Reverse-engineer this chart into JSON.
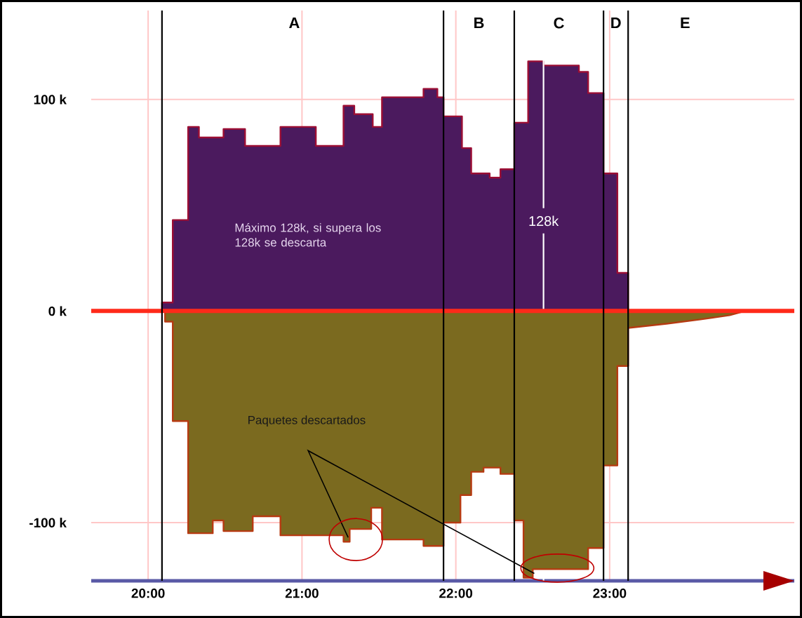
{
  "chart_data": {
    "type": "area",
    "xlim": [
      19.63,
      24.2
    ],
    "ylim": [
      -127.5,
      142
    ],
    "xticks": [
      {
        "value": 20,
        "label": "20:00"
      },
      {
        "value": 21,
        "label": "21:00"
      },
      {
        "value": 22,
        "label": "22:00"
      },
      {
        "value": 23,
        "label": "23:00"
      }
    ],
    "yticks": [
      {
        "value": -100,
        "label": "-100 k"
      },
      {
        "value": 0,
        "label": "0 k"
      },
      {
        "value": 100,
        "label": "100 k"
      }
    ],
    "grid": true,
    "series": [
      {
        "color": "#4b1a5e",
        "x": [
          20.09,
          20.09,
          20.16,
          20.16,
          20.26,
          20.26,
          20.33,
          20.33,
          20.49,
          20.49,
          20.63,
          20.63,
          20.86,
          20.86,
          21.09,
          21.09,
          21.27,
          21.27,
          21.34,
          21.34,
          21.46,
          21.46,
          21.52,
          21.52,
          21.79,
          21.79,
          21.88,
          21.88,
          21.92,
          21.92,
          22.04,
          22.04,
          22.1,
          22.1,
          22.22,
          22.22,
          22.29,
          22.29,
          22.38,
          22.38,
          22.47,
          22.47,
          22.57,
          22.57,
          22.8,
          22.8,
          22.86,
          22.86,
          22.96,
          22.96,
          23.05,
          23.05,
          23.12,
          23.12
        ],
        "values": [
          0,
          4,
          4,
          43,
          43,
          87,
          87,
          82,
          82,
          86,
          86,
          78,
          78,
          87,
          87,
          78,
          78,
          97,
          97,
          93,
          93,
          87,
          87,
          101,
          101,
          105,
          105,
          101,
          101,
          92,
          92,
          77,
          77,
          65,
          65,
          63,
          63,
          67,
          67,
          89,
          89,
          118,
          118,
          116,
          116,
          113,
          113,
          103,
          103,
          65,
          65,
          18,
          18,
          0
        ]
      },
      {
        "color": "#7b6a1f",
        "x": [
          20.11,
          20.11,
          20.16,
          20.16,
          20.26,
          20.26,
          20.42,
          20.42,
          20.49,
          20.49,
          20.68,
          20.68,
          20.86,
          20.86,
          21.27,
          21.27,
          21.31,
          21.31,
          21.45,
          21.45,
          21.52,
          21.52,
          21.79,
          21.79,
          21.92,
          21.92,
          22.03,
          22.03,
          22.1,
          22.1,
          22.18,
          22.18,
          22.29,
          22.29,
          22.38,
          22.38,
          22.44,
          22.44,
          22.5,
          22.5,
          22.86,
          22.86,
          22.96,
          22.96,
          23.05,
          23.05,
          23.12,
          23.12,
          23.37,
          23.59,
          23.78,
          23.88
        ],
        "values": [
          0,
          -5,
          -5,
          -52,
          -52,
          -105,
          -105,
          -99,
          -99,
          -104,
          -104,
          -97,
          -97,
          -106,
          -106,
          -109,
          -109,
          -103,
          -103,
          -93,
          -93,
          -108,
          -108,
          -111,
          -111,
          -100,
          -100,
          -87,
          -87,
          -76,
          -76,
          -74,
          -74,
          -77,
          -77,
          -99,
          -99,
          -126,
          -126,
          -122,
          -122,
          -112,
          -112,
          -73,
          -73,
          -26,
          -26,
          -8,
          -6,
          -4,
          -2,
          0
        ]
      }
    ],
    "ref_lines": [
      {
        "axis": "y",
        "value": 0,
        "color": "#ff2a1a"
      },
      {
        "axis": "x",
        "value": 22.57,
        "label": "128k",
        "color": "#ffffff"
      },
      {
        "axis": "x",
        "value": 20.09,
        "color": "#000000"
      },
      {
        "axis": "x",
        "value": 21.92,
        "color": "#000000"
      },
      {
        "axis": "x",
        "value": 22.38,
        "color": "#000000"
      },
      {
        "axis": "x",
        "value": 22.96,
        "color": "#000000"
      },
      {
        "axis": "x",
        "value": 23.12,
        "color": "#000000"
      }
    ],
    "annotations": [
      "A",
      "B",
      "C",
      "D",
      "E",
      "Máximo 128k, si supera los 128k se descarta",
      "Paquetes descartados"
    ]
  }
}
